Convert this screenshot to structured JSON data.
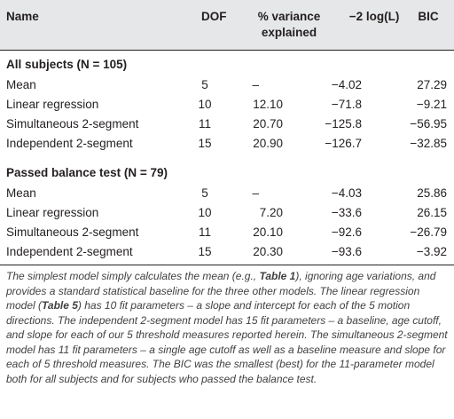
{
  "headers": {
    "name": "Name",
    "dof": "DOF",
    "variance_line1": "% variance",
    "variance_line2": "explained",
    "loglik": "−2 log(L)",
    "bic": "BIC"
  },
  "sections": [
    {
      "title": "All subjects (N = 105)",
      "rows": [
        {
          "name": "Mean",
          "dof": "5",
          "variance": "–",
          "loglik": "−4.02",
          "bic": "27.29"
        },
        {
          "name": "Linear regression",
          "dof": "10",
          "variance": "12.10",
          "loglik": "−71.8",
          "bic": "−9.21"
        },
        {
          "name": "Simultaneous 2-segment",
          "dof": "11",
          "variance": "20.70",
          "loglik": "−125.8",
          "bic": "−56.95"
        },
        {
          "name": "Independent 2-segment",
          "dof": "15",
          "variance": "20.90",
          "loglik": "−126.7",
          "bic": "−32.85"
        }
      ]
    },
    {
      "title": "Passed balance test (N = 79)",
      "rows": [
        {
          "name": "Mean",
          "dof": "5",
          "variance": "–",
          "loglik": "−4.03",
          "bic": "25.86"
        },
        {
          "name": "Linear regression",
          "dof": "10",
          "variance": "7.20",
          "loglik": "−33.6",
          "bic": "26.15"
        },
        {
          "name": "Simultaneous 2-segment",
          "dof": "11",
          "variance": "20.10",
          "loglik": "−92.6",
          "bic": "−26.79"
        },
        {
          "name": "Independent 2-segment",
          "dof": "15",
          "variance": "20.30",
          "loglik": "−93.6",
          "bic": "−3.92"
        }
      ]
    }
  ],
  "footnote": {
    "p1": "The simplest model simply calculates the mean (e.g., ",
    "ref1": "Table 1",
    "p2": "), ignoring age variations, and provides a standard statistical baseline for the three other models. The linear regression model (",
    "ref2": "Table 5",
    "p3": ") has 10 fit parameters – a slope and intercept for each of the 5 motion directions. The independent 2-segment model has 15 fit parameters – a baseline, age cutoff, and slope for each of our 5 threshold measures reported herein. The simultaneous 2-segment model has 11 fit parameters – a single age cutoff as well as a baseline measure and slope for each of 5 threshold measures. The BIC was the smallest (best) for the 11-parameter model both for all subjects and for subjects who passed the balance test."
  }
}
